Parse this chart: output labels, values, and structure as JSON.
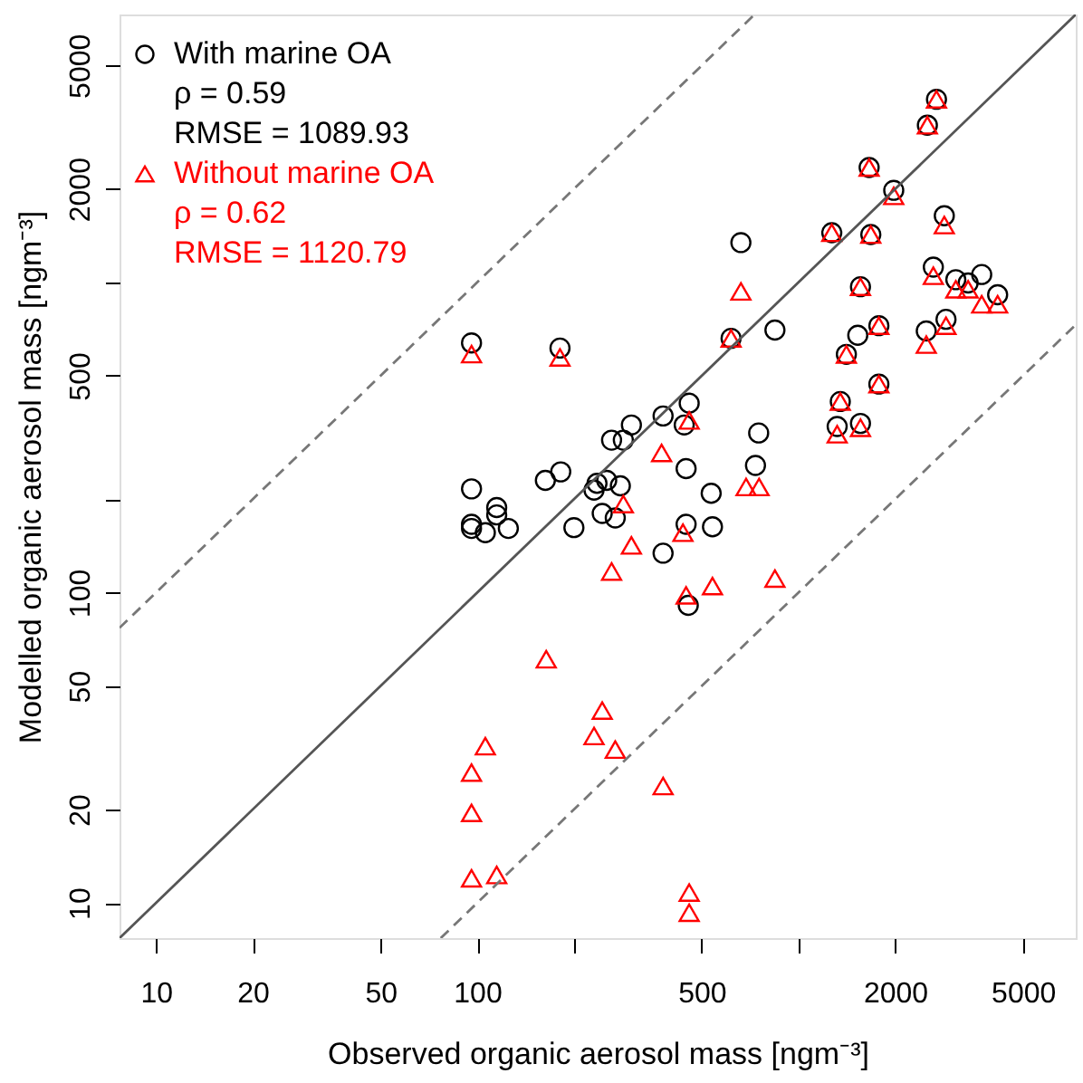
{
  "chart_data": {
    "type": "scatter",
    "xlabel": "Observed organic aerosol mass [ngm⁻³]",
    "ylabel": "Modelled organic aerosol mass [ngm⁻³]",
    "log": "xy",
    "grid": false,
    "legend": "top left",
    "xlim": [
      7.7,
      7300
    ],
    "ylim": [
      7.7,
      7300
    ],
    "xticks": [
      10,
      20,
      50,
      100,
      {
        "value": 200,
        "label": null
      },
      500,
      {
        "value": 1000,
        "label": null
      },
      2000,
      5000
    ],
    "yticks": [
      10,
      20,
      50,
      100,
      {
        "value": 200,
        "label": null
      },
      500,
      {
        "value": 1000,
        "label": null
      },
      2000,
      5000
    ],
    "annotations": [
      "ρ = 0.59",
      "RMSE = 1089.93",
      "ρ = 0.62",
      "RMSE = 1120.79"
    ],
    "series": [
      {
        "name": "With marine OA",
        "marker": "circle",
        "color": "#000000",
        "x": [
          96,
          181,
          2690,
          2520,
          1660,
          1980,
          2845,
          1270,
          1680,
          662,
          2630,
          3090,
          3375,
          3720,
          4170,
          1560,
          1780,
          1530,
          1410,
          2500,
          2880,
          617,
          845,
          1780,
          1350,
          1560,
          1320,
          457,
          441,
          379,
          302,
          262,
          285,
          752,
          447,
          735,
          96,
          96,
          96,
          106,
          115,
          115,
          125,
          163,
          182,
          200,
          231,
          245,
          236,
          253,
          279,
          269,
          379,
          447,
          540,
          535,
          454
        ],
        "values": [
          638,
          614,
          3890,
          3210,
          2345,
          1980,
          1640,
          1445,
          1426,
          1343,
          1120,
          1020,
          995,
          1060,
          912,
          968,
          725,
          675,
          586,
          697,
          760,
          660,
          702,
          470,
          413,
          351,
          343,
          408,
          347,
          371,
          347,
          310,
          310,
          327,
          251,
          257,
          216,
          166,
          161,
          156,
          188,
          178,
          161,
          230,
          245,
          162,
          214,
          180,
          225,
          230,
          221,
          174,
          134,
          166,
          163,
          209,
          91
        ]
      },
      {
        "name": "Without marine OA",
        "marker": "triangle",
        "color": "#ff0000",
        "x": [
          96,
          181,
          2690,
          2520,
          1660,
          1980,
          2845,
          1270,
          1680,
          662,
          2630,
          3090,
          3375,
          3720,
          4170,
          1560,
          1780,
          1410,
          2500,
          2880,
          617,
          1780,
          1350,
          1560,
          1320,
          457,
          375,
          164,
          106,
          96,
          96,
          96,
          115,
          231,
          245,
          687,
          754,
          285,
          302,
          262,
          437,
          447,
          540,
          845,
          379,
          457,
          457,
          269
        ],
        "values": [
          587,
          573,
          3890,
          3210,
          2345,
          1900,
          1530,
          1445,
          1426,
          935,
          1050,
          950,
          950,
          850,
          850,
          968,
          725,
          586,
          630,
          725,
          660,
          470,
          413,
          340,
          324,
          359,
          282,
          61,
          32,
          26.3,
          19.5,
          12,
          12.3,
          34.5,
          41.7,
          219,
          219,
          193,
          142,
          117,
          156,
          98,
          105,
          111,
          23.8,
          10.8,
          9.3,
          31.2
        ]
      },
      {
        "type": "line",
        "color": "#555555",
        "line_style": "solid",
        "x": [
          7.7,
          7300
        ],
        "values": [
          7.7,
          7300
        ]
      },
      {
        "type": "line",
        "color": "#777777",
        "line_style": "dashed",
        "x": [
          7.7,
          730
        ],
        "values": [
          77,
          7300
        ]
      },
      {
        "type": "line",
        "color": "#777777",
        "line_style": "dashed",
        "x": [
          77,
          7300
        ],
        "values": [
          7.7,
          730
        ]
      }
    ]
  }
}
